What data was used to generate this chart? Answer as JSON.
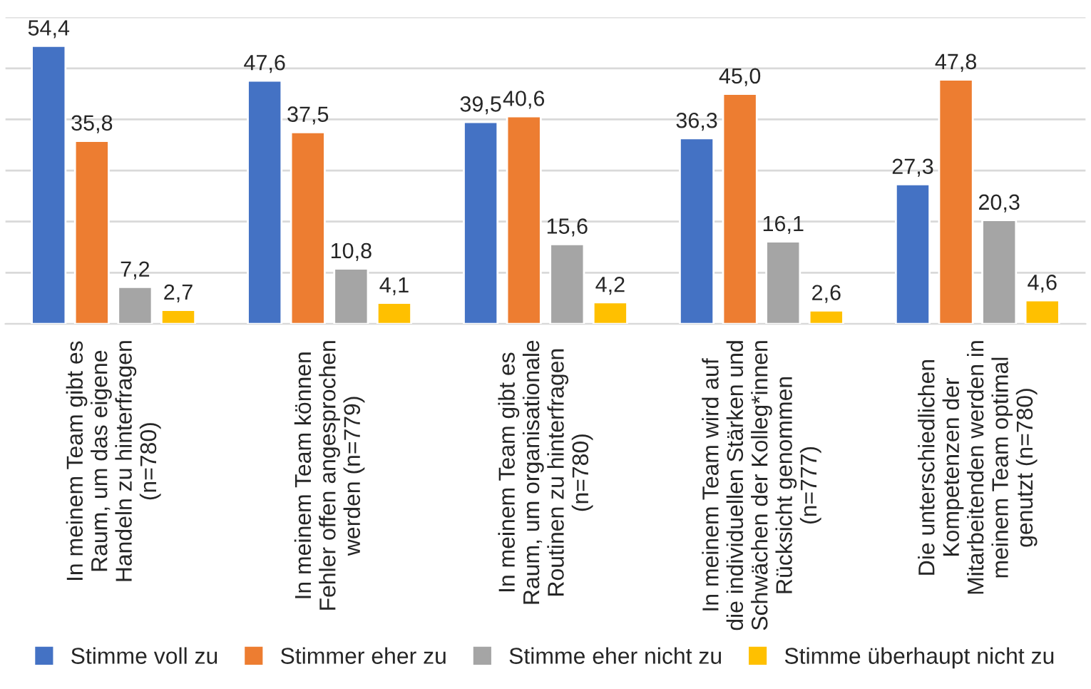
{
  "chart_data": {
    "type": "bar",
    "categories": [
      "In meinem Team gibt es\nRaum, um das eigene\nHandeln zu hinterfragen\n(n=780)",
      "In meinem Team können\nFehler offen angesprochen\nwerden (n=779)",
      "In meinem Team gibt es\nRaum, um organisationale\nRoutinen zu hinterfragen\n(n=780)",
      "In meinem Team wird auf\ndie individuellen Stärken und\nSchwächen der Kolleg*innen\nRücksicht genommen\n(n=777)",
      "Die unterschiedlichen\nKompetenzen der\nMitarbeitenden werden in\nmeinem Team optimal\ngenutzt (n=780)"
    ],
    "series": [
      {
        "name": "Stimme voll zu",
        "color": "#4472c4",
        "values": [
          54.4,
          47.6,
          39.5,
          36.3,
          27.3
        ],
        "value_labels": [
          "54,4",
          "47,6",
          "39,5",
          "36,3",
          "27,3"
        ]
      },
      {
        "name": "Stimmer eher zu",
        "color": "#ed7d31",
        "values": [
          35.8,
          37.5,
          40.6,
          45.0,
          47.8
        ],
        "value_labels": [
          "35,8",
          "37,5",
          "40,6",
          "45,0",
          "47,8"
        ]
      },
      {
        "name": "Stimme eher nicht zu",
        "color": "#a5a5a5",
        "values": [
          7.2,
          10.8,
          15.6,
          16.1,
          20.3
        ],
        "value_labels": [
          "7,2",
          "10,8",
          "15,6",
          "16,1",
          "20,3"
        ]
      },
      {
        "name": "Stimme überhaupt nicht zu",
        "color": "#ffc000",
        "values": [
          2.7,
          4.1,
          4.2,
          2.6,
          4.6
        ],
        "value_labels": [
          "2,7",
          "4,1",
          "4,2",
          "2,6",
          "4,6"
        ]
      }
    ],
    "ylim": [
      0,
      60
    ],
    "yticks": [
      {
        "value": 0,
        "label": null
      },
      {
        "value": 10,
        "label": null
      },
      {
        "value": 20,
        "label": null
      },
      {
        "value": 30,
        "label": null
      },
      {
        "value": 40,
        "label": null
      },
      {
        "value": 50,
        "label": null
      },
      {
        "value": 60,
        "label": null
      }
    ],
    "grid": "y",
    "legend": "bottom",
    "tick_labels": "x"
  }
}
